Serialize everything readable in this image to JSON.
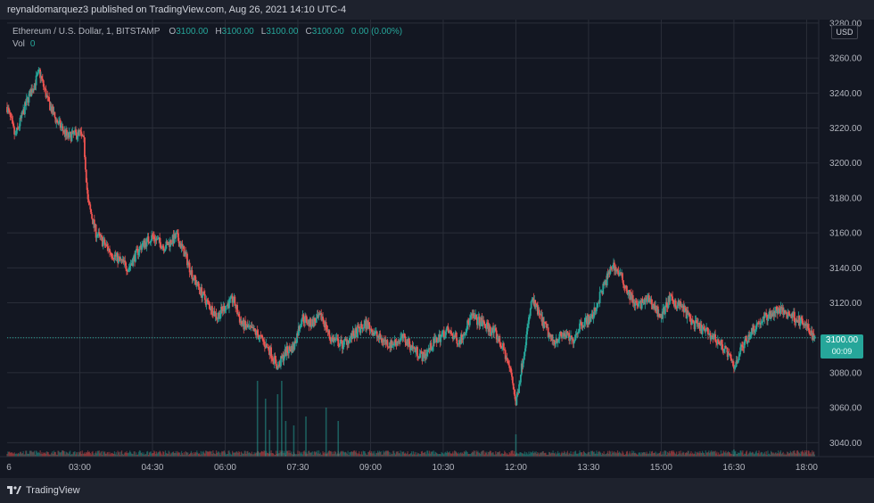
{
  "publish_line": "reynaldomarquez3 published on TradingView.com, Aug 26, 2021 14:10 UTC-4",
  "legend": {
    "symbol": "Ethereum / U.S. Dollar, 1, BITSTAMP",
    "o_label": "O",
    "o_value": "3100.00",
    "h_label": "H",
    "h_value": "3100.00",
    "l_label": "L",
    "l_value": "3100.00",
    "c_label": "C",
    "c_value": "3100.00",
    "change": "0.00 (0.00%)",
    "vol_label": "Vol",
    "vol_value": "0"
  },
  "currency_badge": "USD",
  "last_price": {
    "value": "3100.00",
    "countdown": "00:09"
  },
  "footer_brand": "TradingView",
  "colors": {
    "up": "#26a69a",
    "down": "#ef5350",
    "background": "#131722",
    "grid": "#2a2e39"
  },
  "chart_data": {
    "type": "candlestick",
    "y_axis_ticks": [
      "3280.00",
      "3260.00",
      "3240.00",
      "3220.00",
      "3200.00",
      "3180.00",
      "3160.00",
      "3140.00",
      "3120.00",
      "3100.00",
      "3080.00",
      "3060.00",
      "3040.00"
    ],
    "x_axis_ticks": [
      "6",
      "03:00",
      "04:30",
      "06:00",
      "07:30",
      "09:00",
      "10:30",
      "12:00",
      "13:30",
      "15:00",
      "16:30",
      "18:00"
    ],
    "ylim": [
      3032,
      3282
    ],
    "x_range": [
      "01:30",
      "18:15"
    ],
    "last_value": 3100,
    "close_path": [
      [
        "01:30",
        3232
      ],
      [
        "01:40",
        3215
      ],
      [
        "01:55",
        3236
      ],
      [
        "02:10",
        3252
      ],
      [
        "02:20",
        3236
      ],
      [
        "02:30",
        3225
      ],
      [
        "02:45",
        3215
      ],
      [
        "03:00",
        3217
      ],
      [
        "03:05",
        3212
      ],
      [
        "03:10",
        3178
      ],
      [
        "03:20",
        3160
      ],
      [
        "03:40",
        3148
      ],
      [
        "04:00",
        3140
      ],
      [
        "04:15",
        3152
      ],
      [
        "04:30",
        3158
      ],
      [
        "04:45",
        3152
      ],
      [
        "05:00",
        3158
      ],
      [
        "05:10",
        3148
      ],
      [
        "05:20",
        3135
      ],
      [
        "05:35",
        3122
      ],
      [
        "05:50",
        3112
      ],
      [
        "06:00",
        3118
      ],
      [
        "06:10",
        3122
      ],
      [
        "06:20",
        3108
      ],
      [
        "06:40",
        3102
      ],
      [
        "06:55",
        3093
      ],
      [
        "07:05",
        3083
      ],
      [
        "07:15",
        3092
      ],
      [
        "07:25",
        3095
      ],
      [
        "07:35",
        3112
      ],
      [
        "07:45",
        3108
      ],
      [
        "08:00",
        3112
      ],
      [
        "08:10",
        3100
      ],
      [
        "08:25",
        3096
      ],
      [
        "08:40",
        3102
      ],
      [
        "08:55",
        3108
      ],
      [
        "09:10",
        3100
      ],
      [
        "09:25",
        3096
      ],
      [
        "09:40",
        3100
      ],
      [
        "09:55",
        3093
      ],
      [
        "10:05",
        3089
      ],
      [
        "10:20",
        3098
      ],
      [
        "10:35",
        3104
      ],
      [
        "10:50",
        3098
      ],
      [
        "11:05",
        3112
      ],
      [
        "11:20",
        3108
      ],
      [
        "11:35",
        3102
      ],
      [
        "11:45",
        3093
      ],
      [
        "11:55",
        3078
      ],
      [
        "12:00",
        3062
      ],
      [
        "12:10",
        3092
      ],
      [
        "12:20",
        3122
      ],
      [
        "12:30",
        3112
      ],
      [
        "12:45",
        3098
      ],
      [
        "13:00",
        3102
      ],
      [
        "13:10",
        3098
      ],
      [
        "13:20",
        3108
      ],
      [
        "13:35",
        3112
      ],
      [
        "13:45",
        3125
      ],
      [
        "14:00",
        3142
      ],
      [
        "14:10",
        3135
      ],
      [
        "14:20",
        3125
      ],
      [
        "14:30",
        3118
      ],
      [
        "14:45",
        3122
      ],
      [
        "15:00",
        3112
      ],
      [
        "15:10",
        3122
      ],
      [
        "15:25",
        3118
      ],
      [
        "15:40",
        3108
      ],
      [
        "16:00",
        3102
      ],
      [
        "16:10",
        3098
      ],
      [
        "16:20",
        3093
      ],
      [
        "16:30",
        3083
      ],
      [
        "16:40",
        3095
      ],
      [
        "16:55",
        3106
      ],
      [
        "17:10",
        3112
      ],
      [
        "17:25",
        3116
      ],
      [
        "17:45",
        3112
      ],
      [
        "18:00",
        3106
      ],
      [
        "18:10",
        3100
      ]
    ],
    "volume_spikes": [
      [
        "06:40",
        0.85
      ],
      [
        "06:50",
        0.65
      ],
      [
        "06:55",
        0.3
      ],
      [
        "07:05",
        0.7
      ],
      [
        "07:10",
        0.85
      ],
      [
        "07:15",
        0.4
      ],
      [
        "07:25",
        0.35
      ],
      [
        "07:40",
        0.45
      ],
      [
        "08:05",
        0.55
      ],
      [
        "08:20",
        0.4
      ],
      [
        "12:00",
        0.25
      ],
      [
        "16:30",
        0.08
      ]
    ]
  }
}
